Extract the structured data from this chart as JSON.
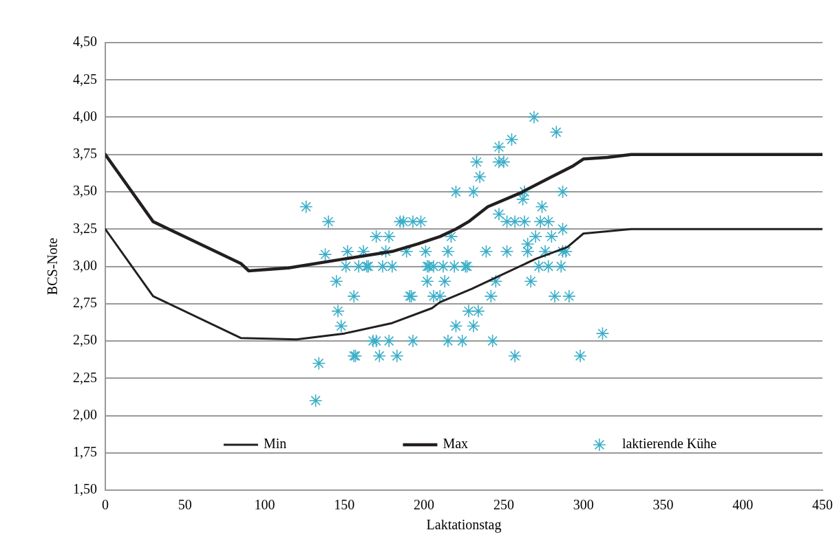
{
  "chart_data": {
    "type": "line",
    "xlabel": "Laktationstag",
    "ylabel": "BCS-Note",
    "xlim": [
      0,
      450
    ],
    "xticks": [
      0,
      50,
      100,
      150,
      200,
      250,
      300,
      350,
      400,
      450
    ],
    "ylim": [
      1.5,
      4.5
    ],
    "yticks": [
      {
        "value": 1.5,
        "label": "1,50"
      },
      {
        "value": 1.75,
        "label": "1,75"
      },
      {
        "value": 2.0,
        "label": "2,00"
      },
      {
        "value": 2.25,
        "label": "2,25"
      },
      {
        "value": 2.5,
        "label": "2,50"
      },
      {
        "value": 2.75,
        "label": "2,75"
      },
      {
        "value": 3.0,
        "label": "3,00"
      },
      {
        "value": 3.25,
        "label": "3,25"
      },
      {
        "value": 3.5,
        "label": "3,50"
      },
      {
        "value": 3.75,
        "label": "3,75"
      },
      {
        "value": 4.0,
        "label": "4,00"
      },
      {
        "value": 4.25,
        "label": "4,25"
      },
      {
        "value": 4.5,
        "label": "4,50"
      }
    ],
    "grid": "y",
    "legend": "bottom",
    "series": [
      {
        "name": "Min",
        "type": "line",
        "color": "#231f20",
        "marker": "none",
        "x": [
          0,
          30,
          85,
          120,
          150,
          180,
          205,
          210,
          230,
          250,
          270,
          290,
          300,
          330,
          450
        ],
        "values": [
          3.25,
          2.8,
          2.52,
          2.51,
          2.55,
          2.62,
          2.72,
          2.76,
          2.85,
          2.95,
          3.05,
          3.13,
          3.22,
          3.25,
          3.25
        ]
      },
      {
        "name": "Max",
        "type": "line",
        "color": "#231f20",
        "marker": "none",
        "x": [
          0,
          30,
          85,
          90,
          115,
          150,
          180,
          196,
          210,
          220,
          228,
          240,
          260,
          280,
          293,
          300,
          315,
          330,
          450
        ],
        "values": [
          3.75,
          3.3,
          3.02,
          2.97,
          2.99,
          3.05,
          3.1,
          3.15,
          3.2,
          3.25,
          3.3,
          3.4,
          3.49,
          3.6,
          3.67,
          3.72,
          3.73,
          3.75,
          3.75
        ]
      },
      {
        "name": "laktierende Kühe",
        "type": "scatter",
        "color": "#3aaec8",
        "marker": "cross",
        "x": [
          126,
          140,
          138,
          145,
          146,
          148,
          156,
          134,
          132,
          152,
          151,
          162,
          159,
          164,
          165,
          170,
          178,
          176,
          174,
          180,
          185,
          187,
          193,
          198,
          189,
          201,
          202,
          202,
          191,
          192,
          168,
          170,
          178,
          193,
          156,
          157,
          172,
          183,
          269,
          283,
          255,
          247,
          233,
          247,
          250,
          235,
          220,
          231,
          263,
          287,
          262,
          274,
          247,
          252,
          257,
          263,
          273,
          278,
          287,
          217,
          270,
          280,
          265,
          215,
          239,
          252,
          265,
          276,
          287,
          289,
          203,
          206,
          212,
          219,
          226,
          227,
          272,
          278,
          286,
          213,
          245,
          267,
          206,
          210,
          242,
          282,
          291,
          228,
          234,
          220,
          231,
          215,
          224,
          243,
          312,
          257,
          298
        ],
        "values": [
          3.4,
          3.3,
          3.08,
          2.9,
          2.7,
          2.6,
          2.8,
          2.35,
          2.1,
          3.1,
          3.0,
          3.1,
          3.0,
          3.0,
          3.0,
          3.2,
          3.2,
          3.1,
          3.0,
          3.0,
          3.3,
          3.3,
          3.3,
          3.3,
          3.1,
          3.1,
          3.0,
          2.9,
          2.8,
          2.8,
          2.5,
          2.5,
          2.5,
          2.5,
          2.4,
          2.4,
          2.4,
          2.4,
          4.0,
          3.9,
          3.85,
          3.8,
          3.7,
          3.7,
          3.7,
          3.6,
          3.5,
          3.5,
          3.5,
          3.5,
          3.45,
          3.4,
          3.35,
          3.3,
          3.3,
          3.3,
          3.3,
          3.3,
          3.25,
          3.2,
          3.2,
          3.2,
          3.15,
          3.1,
          3.1,
          3.1,
          3.1,
          3.1,
          3.1,
          3.1,
          3.0,
          3.0,
          3.0,
          3.0,
          3.0,
          3.0,
          3.0,
          3.0,
          3.0,
          2.9,
          2.9,
          2.9,
          2.8,
          2.8,
          2.8,
          2.8,
          2.8,
          2.7,
          2.7,
          2.6,
          2.6,
          2.5,
          2.5,
          2.5,
          2.55,
          2.4,
          2.4
        ]
      }
    ]
  }
}
